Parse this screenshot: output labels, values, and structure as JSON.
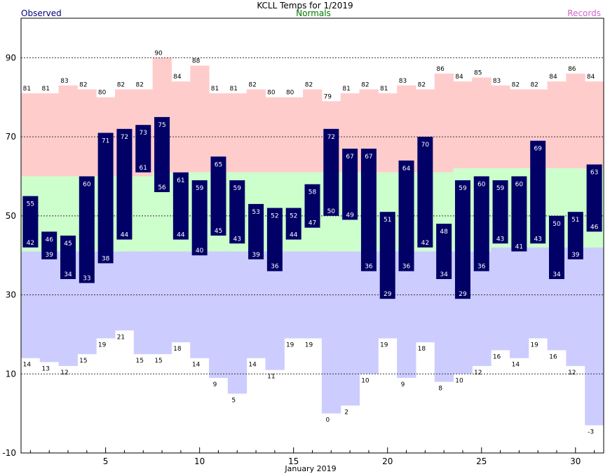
{
  "chart_data": {
    "type": "bar",
    "title": "KCLL Temps for 1/2019",
    "legend": {
      "observed": "Observed",
      "normals": "Normals",
      "records": "Records"
    },
    "xlabel": "January 2019",
    "ylabel": "",
    "ylim": [
      -10,
      100
    ],
    "xlim": [
      0.5,
      31.5
    ],
    "yticks": [
      -10,
      10,
      30,
      50,
      70,
      90
    ],
    "xticks": [
      5,
      10,
      15,
      20,
      25,
      30
    ],
    "grid": true,
    "days": [
      1,
      2,
      3,
      4,
      5,
      6,
      7,
      8,
      9,
      10,
      11,
      12,
      13,
      14,
      15,
      16,
      17,
      18,
      19,
      20,
      21,
      22,
      23,
      24,
      25,
      26,
      27,
      28,
      29,
      30,
      31
    ],
    "series": [
      {
        "name": "Observed",
        "key": "obs_high",
        "values": [
          55,
          46,
          45,
          60,
          71,
          72,
          73,
          75,
          61,
          59,
          65,
          59,
          53,
          52,
          52,
          58,
          72,
          67,
          67,
          51,
          64,
          70,
          48,
          59,
          60,
          59,
          60,
          69,
          50,
          51,
          63
        ]
      },
      {
        "name": "Observed",
        "key": "obs_low",
        "values": [
          42,
          39,
          34,
          33,
          38,
          44,
          61,
          56,
          44,
          40,
          45,
          43,
          39,
          36,
          44,
          47,
          50,
          49,
          36,
          29,
          36,
          42,
          34,
          29,
          36,
          43,
          41,
          43,
          34,
          39,
          46
        ]
      },
      {
        "name": "Records",
        "key": "record_high",
        "values": [
          81,
          81,
          83,
          82,
          80,
          82,
          82,
          90,
          84,
          88,
          81,
          81,
          82,
          80,
          80,
          82,
          79,
          81,
          82,
          81,
          83,
          82,
          86,
          84,
          85,
          83,
          82,
          82,
          84,
          86,
          84
        ]
      },
      {
        "name": "Records",
        "key": "record_low",
        "values": [
          14,
          13,
          12,
          15,
          19,
          21,
          15,
          15,
          18,
          14,
          9,
          5,
          14,
          11,
          19,
          19,
          0,
          2,
          10,
          19,
          9,
          18,
          8,
          10,
          12,
          16,
          14,
          19,
          16,
          12,
          -3
        ]
      },
      {
        "name": "Normals",
        "key": "normal_high",
        "values": [
          60,
          60,
          60,
          60,
          60,
          60,
          60,
          61,
          61,
          61,
          61,
          61,
          61,
          61,
          61,
          61,
          61,
          61,
          61,
          61,
          61,
          61,
          61,
          62,
          62,
          62,
          62,
          62,
          62,
          62,
          62
        ]
      },
      {
        "name": "Normals",
        "key": "normal_low",
        "values": [
          41,
          41,
          41,
          41,
          41,
          41,
          41,
          41,
          41,
          41,
          41,
          41,
          41,
          41,
          41,
          41,
          41,
          41,
          41,
          41,
          41,
          41,
          41,
          41,
          41,
          42,
          42,
          42,
          42,
          42,
          42
        ]
      }
    ],
    "colors": {
      "observed_bar": "#000066",
      "observed_text": "#000080",
      "normals_text": "#007700",
      "records_text": "#cc66cc",
      "record_high_fill": "#ffcccc",
      "normal_fill": "#ccffcc",
      "record_low_fill": "#ccccff",
      "grid": "#333333"
    }
  }
}
